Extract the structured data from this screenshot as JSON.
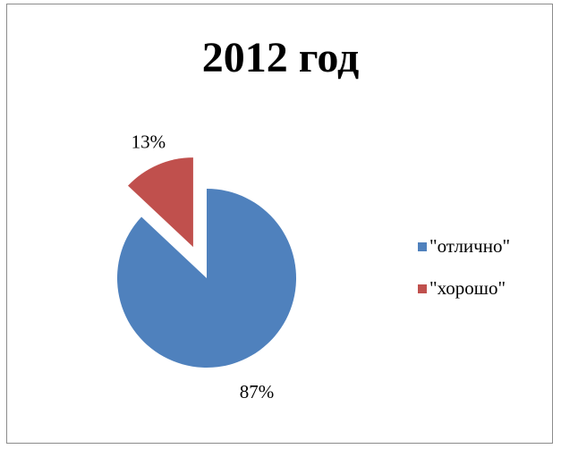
{
  "chart_data": {
    "type": "pie",
    "title": "2012 год",
    "categories": [
      "\"отлично\"",
      "\"хорошо\""
    ],
    "values": [
      87,
      13
    ],
    "labels": [
      "87%",
      "13%"
    ],
    "colors": [
      "#4f81bd",
      "#c0504d"
    ],
    "exploded": [
      false,
      true
    ],
    "legend_position": "right"
  }
}
